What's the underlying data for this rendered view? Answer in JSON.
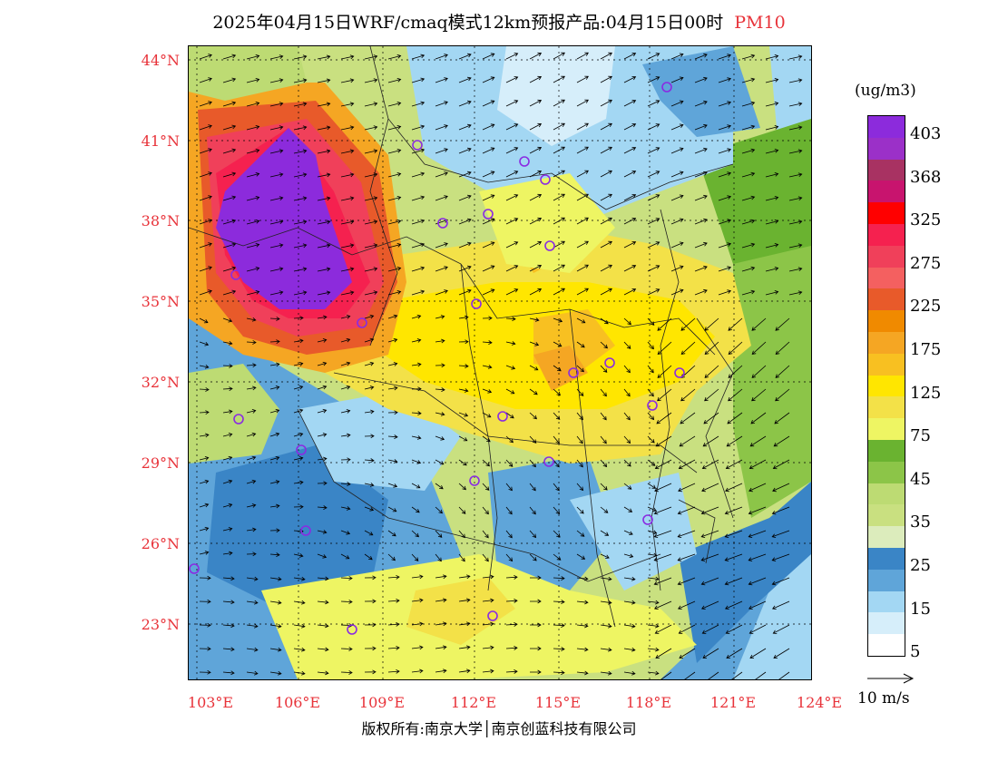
{
  "title": "2025年04月15日WRF/cmaq模式12km预报产品:04月15日00时",
  "pollutant": "PM10",
  "colors": {
    "title_highlight": "#e8333a",
    "station_marker": "#8a2be2"
  },
  "lat_labels": [
    "44°N",
    "41°N",
    "38°N",
    "35°N",
    "32°N",
    "29°N",
    "26°N",
    "23°N"
  ],
  "lon_labels": [
    "103°E",
    "106°E",
    "109°E",
    "112°E",
    "115°E",
    "118°E",
    "121°E",
    "124°E"
  ],
  "legend": {
    "unit": "(ug/m3)",
    "bins": [
      {
        "label": "403",
        "color": "#8c2bdc"
      },
      {
        "label": "",
        "color": "#9b30c8"
      },
      {
        "label": "368",
        "color": "#a83262"
      },
      {
        "label": "",
        "color": "#c8146e"
      },
      {
        "label": "325",
        "color": "#ff0000"
      },
      {
        "label": "",
        "color": "#f5214f"
      },
      {
        "label": "275",
        "color": "#f0405a"
      },
      {
        "label": "",
        "color": "#f46060"
      },
      {
        "label": "225",
        "color": "#e85a2a"
      },
      {
        "label": "",
        "color": "#f08a00"
      },
      {
        "label": "175",
        "color": "#f5a623"
      },
      {
        "label": "",
        "color": "#f8c021"
      },
      {
        "label": "125",
        "color": "#ffe600"
      },
      {
        "label": "",
        "color": "#f3e148"
      },
      {
        "label": "75",
        "color": "#eef563"
      },
      {
        "label": "",
        "color": "#6ab330"
      },
      {
        "label": "45",
        "color": "#8cc548"
      },
      {
        "label": "",
        "color": "#bddb73"
      },
      {
        "label": "35",
        "color": "#c9e080"
      },
      {
        "label": "",
        "color": "#dcecbc"
      },
      {
        "label": "25",
        "color": "#3a85c6"
      },
      {
        "label": "",
        "color": "#5fa5d9"
      },
      {
        "label": "15",
        "color": "#a3d7f3"
      },
      {
        "label": "",
        "color": "#d6eefa"
      },
      {
        "label": "5",
        "color": "#ffffff"
      }
    ]
  },
  "reference_vector": "10 m/s",
  "copyright": "版权所有:南京大学│南京创蓝科技有限公司"
}
